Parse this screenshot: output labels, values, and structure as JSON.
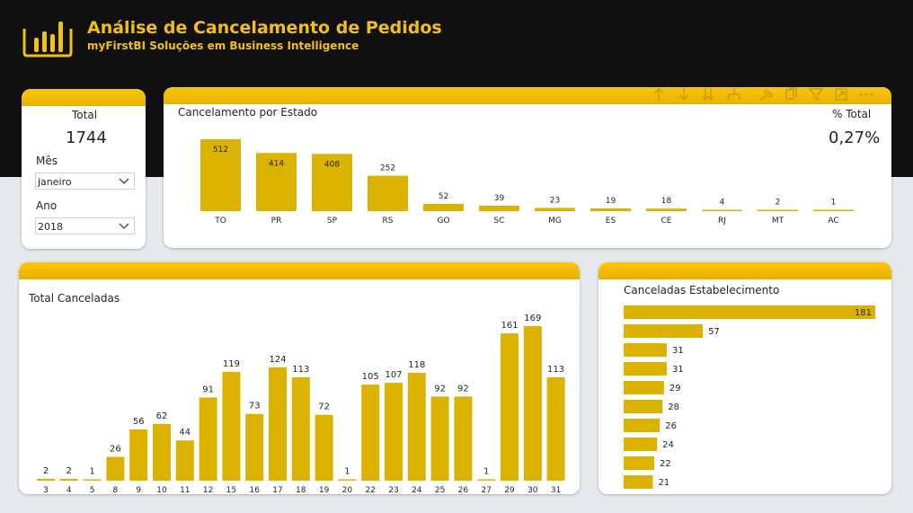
{
  "header": {
    "title": "Análise de Cancelamento de Pedidos",
    "subtitle": "myFirstBI Soluções em Business Intelligence",
    "logo_icon": "bar-chart-logo-icon"
  },
  "colors": {
    "accent": "#dbb200",
    "header_bg": "#101010",
    "title": "#f2c011"
  },
  "kpi": {
    "label": "Total",
    "value": "1744"
  },
  "filters": {
    "month": {
      "label": "Mês",
      "value": "janeiro"
    },
    "year": {
      "label": "Ano",
      "value": "2018"
    }
  },
  "visual_toolbar": {
    "icons": [
      "arrow-up-icon",
      "arrow-down-icon",
      "double-arrow-down-icon",
      "expand-hierarchy-icon",
      "pin-icon",
      "copy-icon",
      "filter-icon",
      "focus-mode-icon",
      "more-options-icon"
    ]
  },
  "estado": {
    "title": "Cancelamento por Estado",
    "pct_label": "% Total",
    "pct_value": "0,27%"
  },
  "canceladas": {
    "title": "Total Canceladas"
  },
  "estab": {
    "title": "Canceladas Estabelecimento"
  },
  "chart_data": [
    {
      "type": "bar",
      "title": "Cancelamento por Estado",
      "categories": [
        "TO",
        "PR",
        "SP",
        "RS",
        "GO",
        "SC",
        "MG",
        "ES",
        "CE",
        "RJ",
        "MT",
        "AC"
      ],
      "values": [
        512,
        414,
        408,
        252,
        52,
        39,
        23,
        19,
        18,
        4,
        2,
        1
      ]
    },
    {
      "type": "bar",
      "title": "Total Canceladas",
      "categories": [
        "3",
        "4",
        "5",
        "8",
        "9",
        "10",
        "11",
        "12",
        "15",
        "16",
        "17",
        "18",
        "19",
        "20",
        "22",
        "23",
        "24",
        "25",
        "26",
        "27",
        "29",
        "30",
        "31"
      ],
      "values": [
        2,
        2,
        1,
        26,
        56,
        62,
        44,
        91,
        119,
        73,
        124,
        113,
        72,
        1,
        105,
        107,
        118,
        92,
        92,
        1,
        161,
        169,
        113
      ]
    },
    {
      "type": "bar",
      "orientation": "horizontal",
      "title": "Canceladas Estabelecimento",
      "values": [
        181,
        57,
        31,
        31,
        29,
        28,
        26,
        24,
        22,
        21
      ]
    }
  ]
}
